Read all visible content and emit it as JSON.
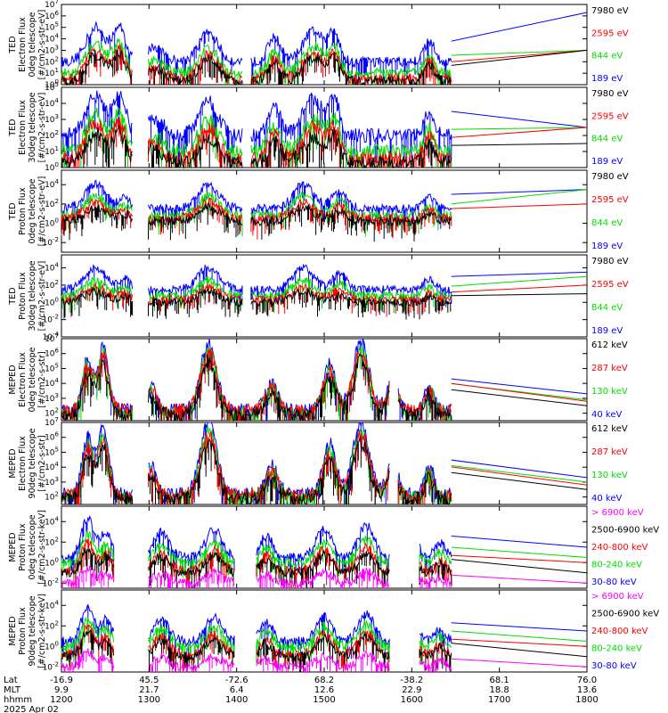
{
  "colors": {
    "blue": "#0000ff",
    "red": "#ff0000",
    "green": "#00dd00",
    "black": "#000000",
    "magenta": "#ff00ff"
  },
  "chart_data": [
    {
      "type": "line",
      "ylabel": [
        "TED",
        "Electron Flux",
        "0deg telescope",
        "[#/cm2-s-str-eV]"
      ],
      "ylog": [
        0,
        7
      ],
      "yticks": [
        0,
        1,
        2,
        3,
        4,
        5,
        6,
        7
      ],
      "legend": [
        {
          "name": "7980 eV",
          "color": "black"
        },
        {
          "name": "2595 eV",
          "color": "red"
        },
        {
          "name": "844 eV",
          "color": "green"
        },
        {
          "name": "189 eV",
          "color": "blue"
        }
      ]
    },
    {
      "type": "line",
      "ylabel": [
        "TED",
        "Electron Flux",
        "30deg telescope",
        "[#/cm2-s-str-eV]"
      ],
      "ylog": [
        0,
        5
      ],
      "yticks": [
        0,
        1,
        2,
        3,
        4,
        5
      ],
      "legend": [
        {
          "name": "7980 eV",
          "color": "black"
        },
        {
          "name": "2595 eV",
          "color": "red"
        },
        {
          "name": "844 eV",
          "color": "green"
        },
        {
          "name": "189 eV",
          "color": "blue"
        }
      ]
    },
    {
      "type": "line",
      "ylabel": [
        "TED",
        "Proton Flux",
        "0deg telescope",
        "[#/cm2-s-str-eV]"
      ],
      "ylog": [
        -3,
        5.5
      ],
      "yticks": [
        -2,
        0,
        2,
        4
      ],
      "legend": [
        {
          "name": "7980 eV",
          "color": "black"
        },
        {
          "name": "2595 eV",
          "color": "red"
        },
        {
          "name": "844 eV",
          "color": "green"
        },
        {
          "name": "189 eV",
          "color": "blue"
        }
      ]
    },
    {
      "type": "line",
      "ylabel": [
        "TED",
        "Proton Flux",
        "30deg telescope",
        "[#/cm2-s-str-eV]"
      ],
      "ylog": [
        -4,
        5.5
      ],
      "yticks": [
        -4,
        -2,
        0,
        2,
        4
      ],
      "legend": [
        {
          "name": "7980 eV",
          "color": "black"
        },
        {
          "name": "2595 eV",
          "color": "red"
        },
        {
          "name": "844 eV",
          "color": "green"
        },
        {
          "name": "189 eV",
          "color": "blue"
        }
      ]
    },
    {
      "type": "line",
      "ylabel": [
        "MEPED",
        "Electron Flux",
        "0deg telescope",
        "[#/cm2-s-str]"
      ],
      "ylog": [
        1.5,
        7
      ],
      "yticks": [
        2,
        3,
        4,
        5,
        6,
        7
      ],
      "legend": [
        {
          "name": "612 keV",
          "color": "black"
        },
        {
          "name": "287 keV",
          "color": "red"
        },
        {
          "name": "130 keV",
          "color": "green"
        },
        {
          "name": "40 keV",
          "color": "blue"
        }
      ]
    },
    {
      "type": "line",
      "ylabel": [
        "MEPED",
        "Electron Flux",
        "90deg telescope",
        "[#/cm2-s-str]"
      ],
      "ylog": [
        1.5,
        7
      ],
      "yticks": [
        2,
        3,
        4,
        5,
        6,
        7
      ],
      "legend": [
        {
          "name": "612 keV",
          "color": "black"
        },
        {
          "name": "287 keV",
          "color": "red"
        },
        {
          "name": "130 keV",
          "color": "green"
        },
        {
          "name": "40 keV",
          "color": "blue"
        }
      ]
    },
    {
      "type": "line",
      "ylabel": [
        "MEPED",
        "Proton Flux",
        "0deg telescope",
        "[#/cm2-s-str-keV]"
      ],
      "ylog": [
        -2.5,
        5.5
      ],
      "yticks": [
        -2,
        0,
        2,
        4
      ],
      "legend": [
        {
          "name": "> 6900 keV",
          "color": "magenta"
        },
        {
          "name": "2500-6900 keV",
          "color": "black"
        },
        {
          "name": "240-800 keV",
          "color": "red"
        },
        {
          "name": "80-240 keV",
          "color": "green"
        },
        {
          "name": "30-80 keV",
          "color": "blue"
        }
      ]
    },
    {
      "type": "line",
      "ylabel": [
        "MEPED",
        "Proton Flux",
        "90deg telescope",
        "[#/cm2-s-str-keV]"
      ],
      "ylog": [
        -2.5,
        5.5
      ],
      "yticks": [
        -2,
        0,
        2,
        4
      ],
      "legend": [
        {
          "name": "> 6900 keV",
          "color": "magenta"
        },
        {
          "name": "2500-6900 keV",
          "color": "black"
        },
        {
          "name": "240-800 keV",
          "color": "red"
        },
        {
          "name": "80-240 keV",
          "color": "green"
        },
        {
          "name": "30-80 keV",
          "color": "blue"
        }
      ]
    }
  ],
  "x_axis": {
    "row_labels": [
      "Lat",
      "MLT",
      "hhmm"
    ],
    "ticks": [
      {
        "lat": "-16.9",
        "mlt": "9.9",
        "hhmm": "1200"
      },
      {
        "lat": "45.5",
        "mlt": "21.7",
        "hhmm": "1300"
      },
      {
        "lat": "-72.6",
        "mlt": "6.4",
        "hhmm": "1400"
      },
      {
        "lat": "68.2",
        "mlt": "12.6",
        "hhmm": "1500"
      },
      {
        "lat": "-38.2",
        "mlt": "22.9",
        "hhmm": "1600"
      },
      {
        "lat": "68.1",
        "mlt": "18.8",
        "hhmm": "1700"
      },
      {
        "lat": "76.0",
        "mlt": "13.6",
        "hhmm": "1800"
      }
    ],
    "date": "2025 Apr 02"
  }
}
